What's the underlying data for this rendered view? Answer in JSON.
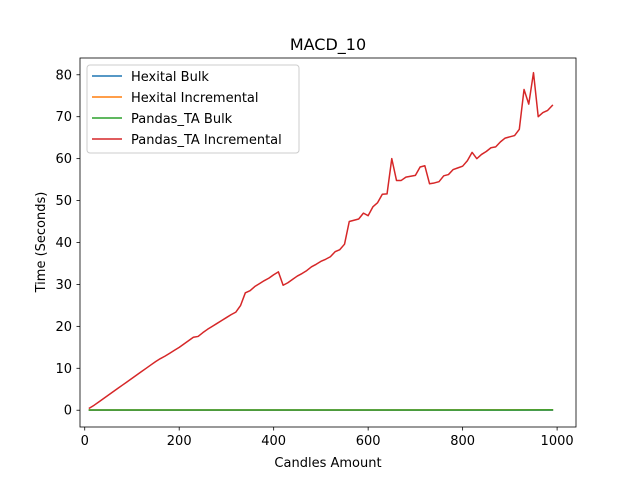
{
  "chart_data": {
    "type": "line",
    "title": "MACD_10",
    "xlabel": "Candles Amount",
    "ylabel": "Time (Seconds)",
    "xlim": [
      -10,
      1040
    ],
    "ylim": [
      -4,
      84
    ],
    "xticks": [
      0,
      200,
      400,
      600,
      800,
      1000
    ],
    "yticks": [
      0,
      10,
      20,
      30,
      40,
      50,
      60,
      70,
      80
    ],
    "grid": false,
    "legend_position": "top-left",
    "series": [
      {
        "name": "Hexital Bulk",
        "color": "#1f77b4",
        "x": [
          10,
          990
        ],
        "y": [
          0.02,
          0.03
        ]
      },
      {
        "name": "Hexital Incremental",
        "color": "#ff7f0e",
        "x": [
          10,
          990
        ],
        "y": [
          0.05,
          0.08
        ]
      },
      {
        "name": "Pandas_TA Bulk",
        "color": "#2ca02c",
        "x": [
          10,
          990
        ],
        "y": [
          0.05,
          0.07
        ]
      },
      {
        "name": "Pandas_TA Incremental",
        "color": "#d62728",
        "x": [
          10,
          20,
          30,
          40,
          50,
          60,
          70,
          80,
          90,
          100,
          110,
          120,
          130,
          140,
          150,
          160,
          170,
          180,
          190,
          200,
          210,
          220,
          230,
          240,
          250,
          260,
          270,
          280,
          290,
          300,
          310,
          320,
          330,
          340,
          350,
          360,
          370,
          380,
          390,
          400,
          410,
          420,
          430,
          440,
          450,
          460,
          470,
          480,
          490,
          500,
          510,
          520,
          530,
          540,
          550,
          560,
          570,
          580,
          590,
          600,
          610,
          620,
          630,
          640,
          650,
          660,
          670,
          680,
          690,
          700,
          710,
          720,
          730,
          740,
          750,
          760,
          770,
          780,
          790,
          800,
          810,
          820,
          830,
          840,
          850,
          860,
          870,
          880,
          890,
          900,
          910,
          920,
          930,
          940,
          950,
          960,
          970,
          980,
          990
        ],
        "y": [
          0.5,
          1.2,
          2.0,
          2.8,
          3.6,
          4.4,
          5.2,
          6.0,
          6.8,
          7.6,
          8.4,
          9.2,
          10.0,
          10.8,
          11.6,
          12.3,
          12.9,
          13.6,
          14.3,
          15.0,
          15.8,
          16.6,
          17.4,
          17.6,
          18.5,
          19.3,
          20.0,
          20.7,
          21.4,
          22.1,
          22.8,
          23.4,
          25.0,
          28.0,
          28.5,
          29.5,
          30.2,
          30.9,
          31.5,
          32.3,
          33.0,
          29.8,
          30.4,
          31.2,
          32.0,
          32.6,
          33.3,
          34.2,
          34.8,
          35.5,
          36.0,
          36.6,
          37.8,
          38.3,
          39.6,
          45.0,
          45.3,
          45.6,
          47.0,
          46.4,
          48.5,
          49.5,
          51.5,
          51.6,
          60.0,
          54.8,
          54.8,
          55.6,
          55.8,
          56.0,
          58.0,
          58.3,
          54.0,
          54.2,
          54.5,
          55.9,
          56.2,
          57.4,
          57.8,
          58.2,
          59.5,
          61.5,
          60.0,
          61.0,
          61.7,
          62.6,
          62.8,
          64.0,
          64.9,
          65.2,
          65.5,
          67.0,
          76.5,
          73.0,
          80.5,
          70.0,
          71.0,
          71.5,
          72.7
        ]
      }
    ]
  }
}
